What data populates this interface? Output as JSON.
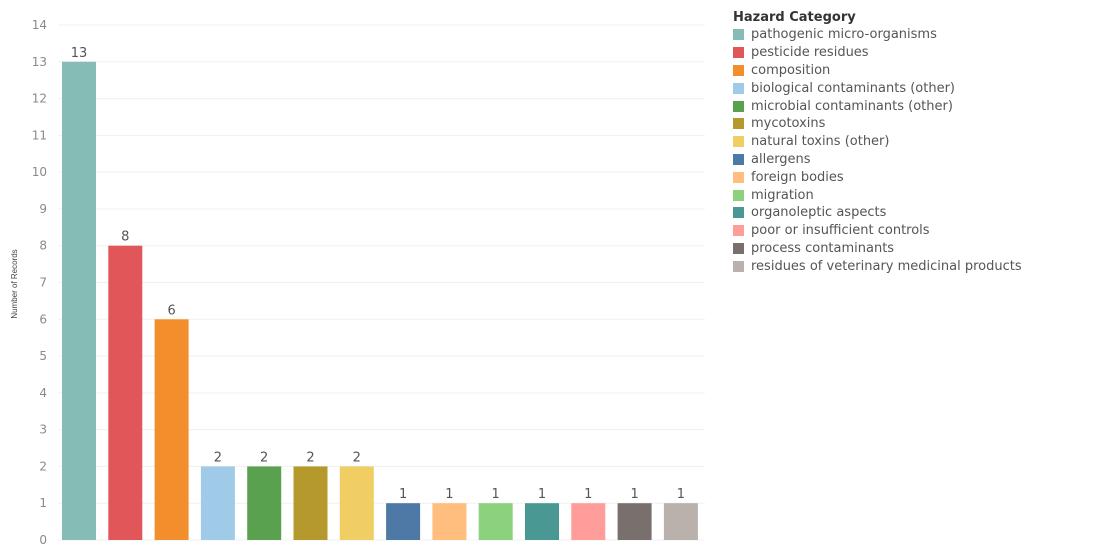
{
  "chart_data": {
    "type": "bar",
    "ylabel": "Number of Records",
    "xlabel": "",
    "ylim": [
      0,
      14
    ],
    "yticks": [
      0,
      1,
      2,
      3,
      4,
      5,
      6,
      7,
      8,
      9,
      10,
      11,
      12,
      13,
      14
    ],
    "grid": true,
    "legend_position": "right",
    "legend_title": "Hazard Category",
    "categories": [
      "pathogenic micro-organisms",
      "pesticide residues",
      "composition",
      "biological contaminants (other)",
      "microbial contaminants (other)",
      "mycotoxins",
      "natural toxins (other)",
      "allergens",
      "foreign bodies",
      "migration",
      "organoleptic aspects",
      "poor or insufficient controls",
      "process contaminants",
      "residues of veterinary medicinal products"
    ],
    "values": [
      13,
      8,
      6,
      2,
      2,
      2,
      2,
      1,
      1,
      1,
      1,
      1,
      1,
      1
    ],
    "colors": [
      "#86bcb6",
      "#e15759",
      "#f28e2b",
      "#a0cbe8",
      "#59a14f",
      "#b6992d",
      "#f1ce63",
      "#4e79a7",
      "#ffbe7d",
      "#8cd17d",
      "#499894",
      "#ff9d9a",
      "#79706e",
      "#bab0ac"
    ]
  }
}
